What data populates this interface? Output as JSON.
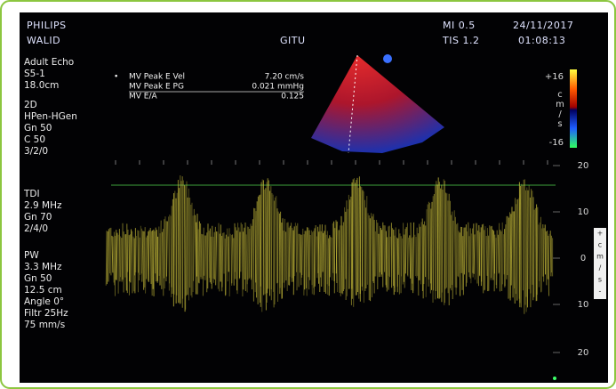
{
  "header": {
    "brand": "PHILIPS",
    "patient": "WALID",
    "operator": "GITU",
    "mi": "MI 0.5",
    "tis": "TIS 1.2",
    "date": "24/11/2017",
    "time": "01:08:13"
  },
  "left_panel": {
    "mode": [
      "Adult Echo",
      "S5-1",
      "18.0cm"
    ],
    "two_d": [
      "2D",
      "HPen-HGen",
      "Gn 50",
      "C 50",
      "3/2/0"
    ],
    "tdi": [
      "TDI",
      "2.9 MHz",
      "Gn 70",
      "2/4/0"
    ],
    "pw": [
      "PW",
      "3.3 MHz",
      "Gn 50",
      "12.5 cm",
      "Angle 0°",
      "Filtr 25Hz",
      "75 mm/s"
    ]
  },
  "measurements": [
    {
      "label": "MV Peak E Vel",
      "value": "7.20 cm/s"
    },
    {
      "label": "MV Peak E PG",
      "value": "0.021 mmHg"
    },
    {
      "label": "MV E/A",
      "value": "0.125"
    }
  ],
  "color_bar": {
    "top": "+16",
    "unit": [
      "c",
      "m",
      "/",
      "s"
    ],
    "bottom": "-16"
  },
  "velocity_scale": [
    "20",
    "10",
    "0",
    "10",
    "20"
  ],
  "scale_unit": [
    "+",
    "c",
    "m",
    "/",
    "s",
    "-"
  ]
}
